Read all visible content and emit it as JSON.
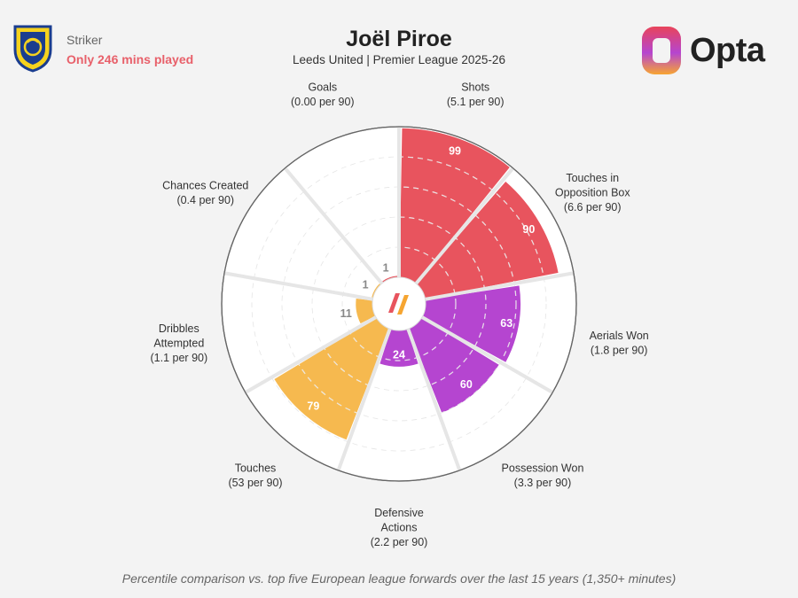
{
  "header": {
    "role": "Striker",
    "mins_note": "Only 246 mins played",
    "title": "Joël Piroe",
    "subtitle": "Leeds United | Premier League 2025-26",
    "brand": "Opta"
  },
  "footer": {
    "note": "Percentile comparison vs. top five European league forwards over the last 15 years (1,350+ minutes)"
  },
  "colors": {
    "attacking": "#e8545e",
    "possession": "#f6b94f",
    "defending": "#b545d0",
    "ring": "#ffffff",
    "grid": "#d9d9d9"
  },
  "chart_data": {
    "type": "polar-bar",
    "scale_max": 100,
    "categories": [
      {
        "name": "Goals",
        "lines": [
          "Goals",
          "(0.00 per 90)"
        ],
        "per90": 0.0,
        "percentile": 1,
        "group": "attacking"
      },
      {
        "name": "Shots",
        "lines": [
          "Shots",
          "(5.1 per 90)"
        ],
        "per90": 5.1,
        "percentile": 99,
        "group": "attacking"
      },
      {
        "name": "Touches in Opposition Box",
        "lines": [
          "Touches in",
          "Opposition Box",
          "(6.6 per 90)"
        ],
        "per90": 6.6,
        "percentile": 90,
        "group": "attacking"
      },
      {
        "name": "Aerials Won",
        "lines": [
          "Aerials Won",
          "(1.8 per 90)"
        ],
        "per90": 1.8,
        "percentile": 63,
        "group": "defending"
      },
      {
        "name": "Possession Won",
        "lines": [
          "Possession Won",
          "(3.3 per 90)"
        ],
        "per90": 3.3,
        "percentile": 60,
        "group": "defending"
      },
      {
        "name": "Defensive Actions",
        "lines": [
          "Defensive",
          "Actions",
          "(2.2 per 90)"
        ],
        "per90": 2.2,
        "percentile": 24,
        "group": "defending"
      },
      {
        "name": "Touches",
        "lines": [
          "Touches",
          "(53 per 90)"
        ],
        "per90": 53,
        "percentile": 79,
        "group": "possession"
      },
      {
        "name": "Dribbles Attempted",
        "lines": [
          "Dribbles",
          "Attempted",
          "(1.1 per 90)"
        ],
        "per90": 1.1,
        "percentile": 11,
        "group": "possession"
      },
      {
        "name": "Chances Created",
        "lines": [
          "Chances Created",
          "(0.4 per 90)"
        ],
        "per90": 0.4,
        "percentile": 1,
        "group": "possession"
      }
    ]
  }
}
